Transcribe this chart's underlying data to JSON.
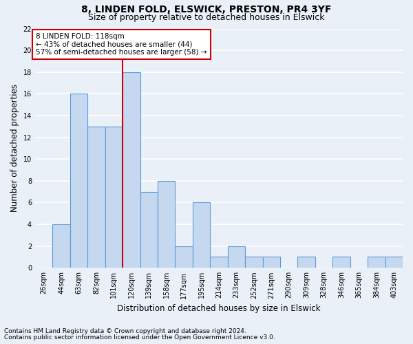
{
  "title1": "8, LINDEN FOLD, ELSWICK, PRESTON, PR4 3YF",
  "title2": "Size of property relative to detached houses in Elswick",
  "xlabel": "Distribution of detached houses by size in Elswick",
  "ylabel": "Number of detached properties",
  "categories": [
    "26sqm",
    "44sqm",
    "63sqm",
    "82sqm",
    "101sqm",
    "120sqm",
    "139sqm",
    "158sqm",
    "177sqm",
    "195sqm",
    "214sqm",
    "233sqm",
    "252sqm",
    "271sqm",
    "290sqm",
    "309sqm",
    "328sqm",
    "346sqm",
    "365sqm",
    "384sqm",
    "403sqm"
  ],
  "values": [
    0,
    4,
    16,
    13,
    13,
    18,
    7,
    8,
    2,
    6,
    1,
    2,
    1,
    1,
    0,
    1,
    0,
    1,
    0,
    1,
    1
  ],
  "bar_color": "#c5d8f0",
  "bar_edge_color": "#5b9bd5",
  "vline_index": 5,
  "vline_color": "#cc0000",
  "annotation_text": "8 LINDEN FOLD: 118sqm\n← 43% of detached houses are smaller (44)\n57% of semi-detached houses are larger (58) →",
  "annotation_box_color": "#ffffff",
  "annotation_box_edge": "#cc0000",
  "ylim": [
    0,
    22
  ],
  "yticks": [
    0,
    2,
    4,
    6,
    8,
    10,
    12,
    14,
    16,
    18,
    20,
    22
  ],
  "footnote1": "Contains HM Land Registry data © Crown copyright and database right 2024.",
  "footnote2": "Contains public sector information licensed under the Open Government Licence v3.0.",
  "bg_color": "#eaf0f8",
  "grid_color": "#ffffff",
  "title1_fontsize": 10,
  "title2_fontsize": 9,
  "xlabel_fontsize": 8.5,
  "ylabel_fontsize": 8.5,
  "tick_fontsize": 7,
  "annotation_fontsize": 7.5,
  "footnote_fontsize": 6.5
}
